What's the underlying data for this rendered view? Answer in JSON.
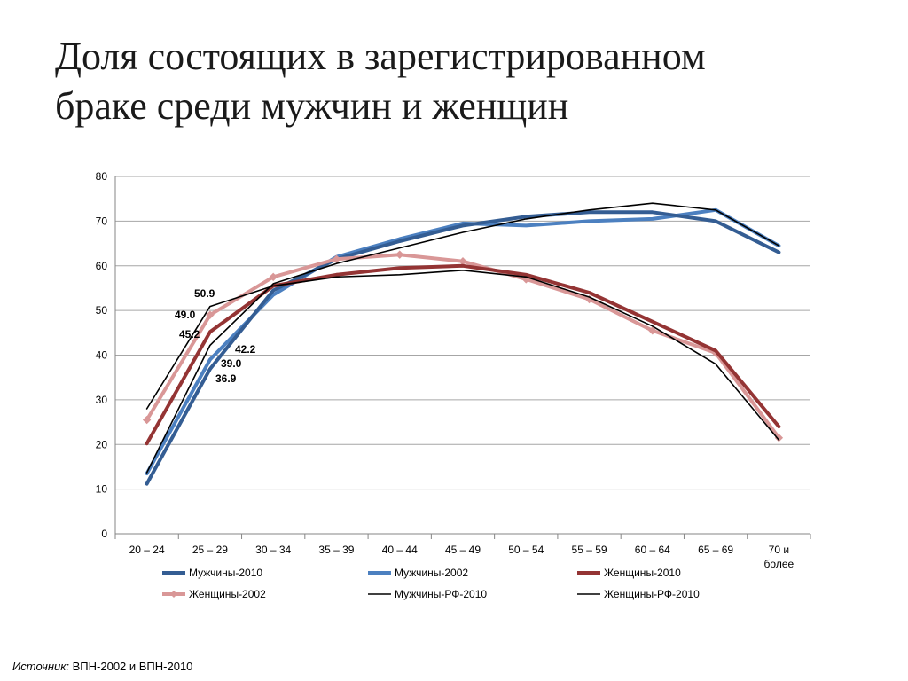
{
  "title": {
    "line1": "Доля состоящих в зарегистрированном",
    "line2": "браке среди мужчин и женщин"
  },
  "source": {
    "label": "Источник:",
    "text": "ВПН-2002 и ВПН-2010"
  },
  "colors": {
    "men2010": "#345d93",
    "men2002": "#4c80c0",
    "women2010": "#943434",
    "women2002": "#d99797",
    "rf": "#000000",
    "grid": "#a6a6a6"
  },
  "chart_data": {
    "type": "line",
    "title": "Доля состоящих в зарегистрированном браке среди мужчин и женщин",
    "xlabel": "",
    "ylabel": "",
    "ylim": [
      0,
      80
    ],
    "yticks": [
      0,
      10,
      20,
      30,
      40,
      50,
      60,
      70,
      80
    ],
    "grid": true,
    "legend_position": "bottom",
    "categories": [
      "20 – 24",
      "25 – 29",
      "30 – 34",
      "35 – 39",
      "40 – 44",
      "45 – 49",
      "50 – 54",
      "55 – 59",
      "60 – 64",
      "65 – 69",
      "70 и более"
    ],
    "series": [
      {
        "name": "Мужчины-2010",
        "color": "#345d93",
        "marker": "none",
        "values": [
          11.2,
          36.9,
          54.5,
          61.5,
          65.5,
          69.0,
          71.0,
          72.0,
          72.0,
          70.0,
          63.0
        ]
      },
      {
        "name": "Мужчины-2002",
        "color": "#4c80c0",
        "marker": "none",
        "values": [
          13.5,
          39.0,
          53.5,
          62.0,
          66.0,
          69.5,
          69.0,
          70.0,
          70.5,
          72.5,
          64.5
        ]
      },
      {
        "name": "Женщины-2010",
        "color": "#943434",
        "marker": "none",
        "values": [
          20.2,
          45.2,
          55.5,
          58.0,
          59.5,
          60.0,
          58.0,
          54.0,
          47.5,
          41.0,
          24.0
        ]
      },
      {
        "name": "Женщины-2002",
        "color": "#d99797",
        "marker": "diamond",
        "values": [
          25.5,
          49.0,
          57.5,
          61.5,
          62.5,
          61.0,
          57.0,
          52.5,
          45.5,
          40.5,
          21.5
        ]
      },
      {
        "name": "Мужчины-РФ-2010",
        "color": "#000000",
        "marker": "none",
        "values": [
          13.7,
          42.2,
          56.0,
          60.5,
          64.0,
          67.5,
          70.5,
          72.5,
          74.0,
          72.5,
          64.5
        ]
      },
      {
        "name": "Женщины-РФ-2010",
        "color": "#000000",
        "marker": "none",
        "values": [
          28.0,
          50.9,
          55.5,
          57.5,
          58.0,
          59.0,
          57.5,
          53.0,
          46.5,
          38.0,
          21.0
        ]
      }
    ],
    "annotations": [
      "50.9",
      "49.0",
      "45.2",
      "42.2",
      "39.0",
      "36.9"
    ]
  }
}
